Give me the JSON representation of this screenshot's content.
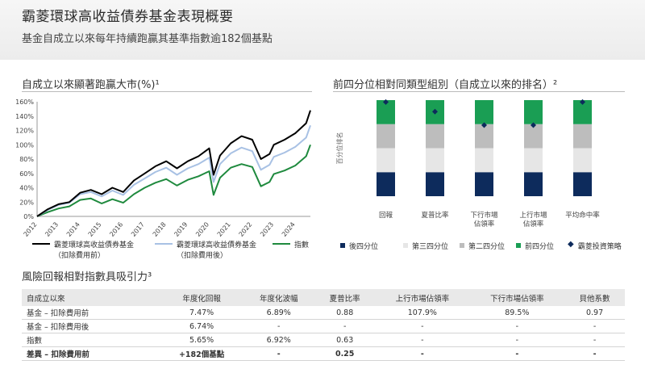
{
  "header": {
    "title": "霸菱環球高收益債券基金表現概要",
    "subtitle": "基金自成立以來每年持續跑贏其基準指數逾182個基點"
  },
  "line_panel": {
    "title": "自成立以來顯著跑贏大市(%)¹"
  },
  "bar_panel": {
    "title": "前四分位相對同類型組別（自成立以來的排名）²"
  },
  "table_panel": {
    "title": "風險回報相對指數具吸引力³",
    "headers": [
      "自成立以來",
      "年度化回報",
      "年度化波幅",
      "夏普比率",
      "上行市場佔領率",
      "下行市場佔領率",
      "貝他系數"
    ],
    "rows": [
      [
        "基金 – 扣除費用前",
        "7.47%",
        "6.89%",
        "0.88",
        "107.9%",
        "89.5%",
        "0.97"
      ],
      [
        "基金 – 扣除費用後",
        "6.74%",
        "-",
        "-",
        "-",
        "-",
        "-"
      ],
      [
        "指數",
        "5.65%",
        "6.92%",
        "0.63",
        "-",
        "-",
        "-"
      ],
      [
        "差異 – 扣除費用前",
        "+182個基點",
        "-",
        "0.25",
        "-",
        "-",
        "-"
      ]
    ]
  },
  "chart_data": [
    {
      "type": "line",
      "title": "自成立以來顯著跑贏大市(%)¹",
      "xlabel": "",
      "ylabel": "",
      "x_ticks": [
        "2012",
        "2013",
        "2014",
        "2015",
        "2016",
        "2017",
        "2018",
        "2019",
        "2020",
        "2021",
        "2022",
        "2023",
        "2024"
      ],
      "y_ticks": [
        "0%",
        "20%",
        "40%",
        "60%",
        "80%",
        "100%",
        "120%",
        "140%",
        "160%"
      ],
      "ylim": [
        0,
        160
      ],
      "xlim": [
        2012.0,
        2024.7
      ],
      "x": [
        2012.0,
        2012.5,
        2013.0,
        2013.5,
        2014.0,
        2014.5,
        2015.0,
        2015.5,
        2016.0,
        2016.5,
        2017.0,
        2017.5,
        2018.0,
        2018.5,
        2019.0,
        2019.5,
        2020.0,
        2020.2,
        2020.5,
        2021.0,
        2021.5,
        2022.0,
        2022.4,
        2022.8,
        2023.0,
        2023.5,
        2024.0,
        2024.5,
        2024.7
      ],
      "series": [
        {
          "name": "霸菱環球高收益債券基金（扣除費用前）",
          "color": "#000000",
          "values": [
            0,
            10,
            17,
            20,
            33,
            37,
            31,
            40,
            34,
            50,
            60,
            70,
            77,
            67,
            77,
            84,
            95,
            58,
            85,
            102,
            112,
            107,
            80,
            87,
            100,
            107,
            116,
            130,
            148
          ]
        },
        {
          "name": "霸菱環球高收益債券基金（扣除費用後）",
          "color": "#a8c1e4",
          "values": [
            0,
            9,
            16,
            19,
            31,
            34,
            28,
            36,
            30,
            44,
            53,
            62,
            68,
            58,
            67,
            73,
            82,
            48,
            73,
            88,
            96,
            91,
            65,
            72,
            83,
            89,
            97,
            110,
            127
          ]
        },
        {
          "name": "指數",
          "color": "#1f8a3e",
          "values": [
            0,
            6,
            11,
            14,
            23,
            25,
            18,
            24,
            19,
            31,
            40,
            47,
            52,
            43,
            51,
            56,
            63,
            30,
            54,
            68,
            73,
            69,
            42,
            48,
            59,
            64,
            71,
            84,
            100
          ]
        }
      ],
      "legend_position": "bottom",
      "grid": false
    },
    {
      "type": "bar",
      "title": "前四分位相對同類型組別（自成立以來的排名）²",
      "stacked": true,
      "ylabel": "百分位排名",
      "ylim": [
        0,
        100
      ],
      "categories": [
        "回報",
        "夏普比率",
        "下行市場佔領率",
        "上行市場佔領率",
        "平均命中率"
      ],
      "category_labels": [
        [
          "回報"
        ],
        [
          "夏普比率"
        ],
        [
          "下行市場",
          "佔領率"
        ],
        [
          "上行市場",
          "佔領率"
        ],
        [
          "平均命中率"
        ]
      ],
      "series": [
        {
          "name": "後四分位",
          "color": "#0d2b5c",
          "values": [
            25,
            25,
            25,
            25,
            25
          ]
        },
        {
          "name": "第三四分位",
          "color": "#e6e6e6",
          "values": [
            25,
            25,
            25,
            25,
            25
          ]
        },
        {
          "name": "第二四分位",
          "color": "#bdbdbd",
          "values": [
            25,
            25,
            25,
            25,
            25
          ]
        },
        {
          "name": "前四分位",
          "color": "#1a9e54",
          "values": [
            25,
            25,
            25,
            25,
            25
          ]
        }
      ],
      "markers": {
        "name": "霸菱投資策略",
        "color": "#0d2b5c",
        "values": [
          98,
          88,
          74,
          74,
          98
        ]
      },
      "legend_position": "bottom",
      "grid": false
    }
  ]
}
